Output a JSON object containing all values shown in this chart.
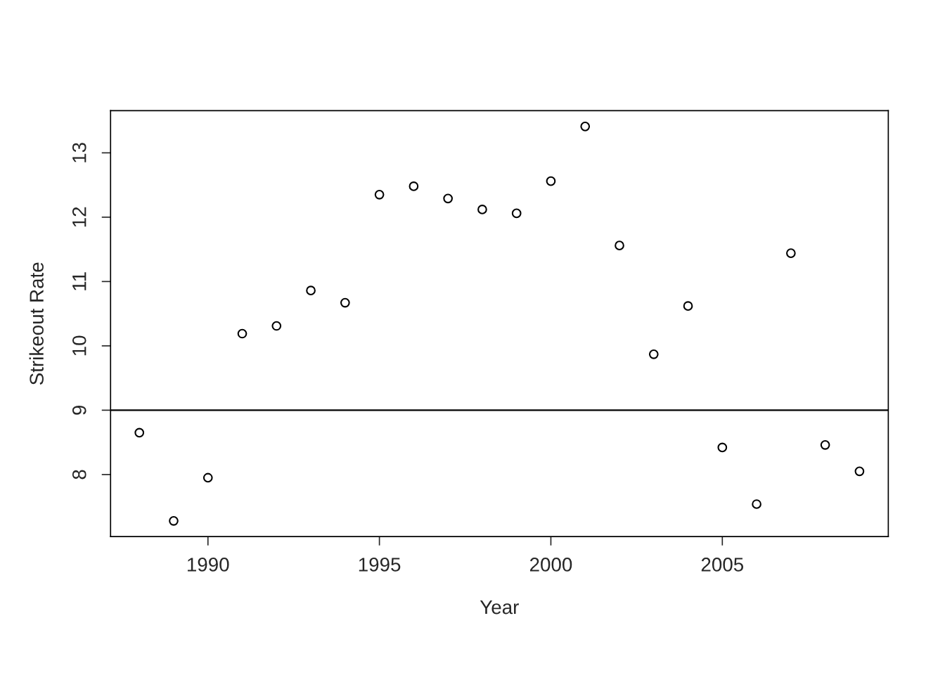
{
  "chart_data": {
    "type": "scatter",
    "xlabel": "Year",
    "ylabel": "Strikeout Rate",
    "x": [
      1988,
      1989,
      1990,
      1991,
      1992,
      1993,
      1994,
      1995,
      1996,
      1997,
      1998,
      1999,
      2000,
      2001,
      2002,
      2003,
      2004,
      2005,
      2006,
      2007,
      2008,
      2009
    ],
    "values": [
      8.65,
      7.28,
      7.95,
      10.19,
      10.31,
      10.86,
      10.67,
      12.35,
      12.48,
      12.29,
      12.12,
      12.06,
      12.56,
      13.41,
      11.56,
      9.87,
      10.62,
      8.42,
      7.54,
      11.44,
      8.46,
      8.05
    ],
    "color": "#000000",
    "marker": "circle",
    "xlim": [
      1987.16,
      2009.84
    ],
    "xticks": [
      1990,
      1995,
      2000,
      2005
    ],
    "ylim": [
      7.035,
      13.655
    ],
    "yticks": [
      8,
      9,
      10,
      11,
      12,
      13
    ],
    "ref_lines": [
      {
        "axis": "y",
        "value": 9,
        "label": null,
        "color": "#000000"
      }
    ],
    "grid": false,
    "legend": false
  }
}
